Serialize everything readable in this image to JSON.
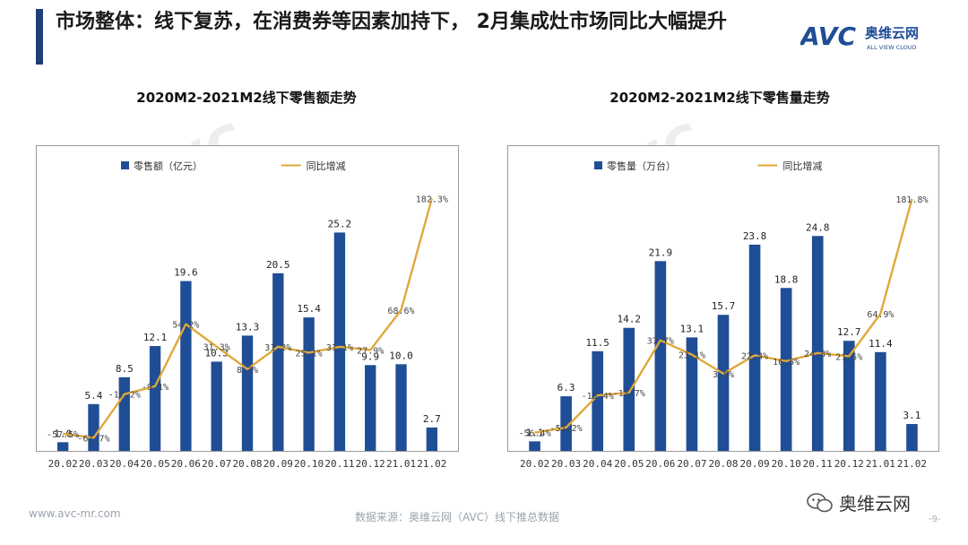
{
  "page": {
    "title": "市场整体：线下复苏，在消费券等因素加持下， 2月集成灶市场同比大幅提升",
    "logo_text": "AVC",
    "logo_cn": "奥维云网",
    "logo_en": "ALL VIEW CLOUD",
    "footer_url": "www.avc-mr.com",
    "footer_source": "数据来源：奥维云网（AVC）线下推总数据",
    "wechat_label": "奥维云网",
    "page_number": "-9-",
    "brand_color": "#1f3e7a",
    "bar_color": "#1f4e96",
    "line_color": "#e0a83a"
  },
  "chart_data": [
    {
      "type": "bar",
      "title": "2020M2-2021M2线下零售额走势",
      "categories": [
        "20.02",
        "20.03",
        "20.04",
        "20.05",
        "20.06",
        "20.07",
        "20.08",
        "20.09",
        "20.10",
        "20.11",
        "20.12",
        "21.01",
        "21.02"
      ],
      "series": [
        {
          "name": "零售额（亿元）",
          "type": "bar",
          "values": [
            1.0,
            5.4,
            8.5,
            12.1,
            19.6,
            10.3,
            13.3,
            20.5,
            15.4,
            25.2,
            9.9,
            10.0,
            2.7
          ],
          "labels": [
            "1.0",
            "5.4",
            "8.5",
            "12.1",
            "19.6",
            "10.3",
            "13.3",
            "20.5",
            "15.4",
            "25.2",
            "9.9",
            "10.0",
            "2.7"
          ]
        },
        {
          "name": "同比增减",
          "type": "line",
          "values": [
            -57.5,
            -61.7,
            -17.2,
            -9.1,
            54.2,
            31.3,
            8.3,
            31.2,
            25.1,
            31.1,
            27.9,
            68.6,
            182.3
          ],
          "labels": [
            "-57.5%",
            "-61.7%",
            "-17.2%",
            "-9.1%",
            "54.2%",
            "31.3%",
            "8.3%",
            "31.2%",
            "25.1%",
            "31.1%",
            "27.9%",
            "68.6%",
            "182.3%"
          ]
        }
      ],
      "ylim_bar": [
        0,
        30
      ],
      "ylim_line": [
        -75,
        190
      ],
      "legend_position": "top"
    },
    {
      "type": "bar",
      "title": "2020M2-2021M2线下零售量走势",
      "categories": [
        "20.02",
        "20.03",
        "20.04",
        "20.05",
        "20.06",
        "20.07",
        "20.08",
        "20.09",
        "20.10",
        "20.11",
        "20.12",
        "21.01",
        "21.02"
      ],
      "series": [
        {
          "name": "零售量（万台）",
          "type": "bar",
          "values": [
            1.1,
            6.3,
            11.5,
            14.2,
            21.9,
            13.1,
            15.7,
            23.8,
            18.8,
            24.8,
            12.7,
            11.4,
            3.1
          ],
          "labels": [
            "1.1",
            "6.3",
            "11.5",
            "14.2",
            "21.9",
            "13.1",
            "15.7",
            "23.8",
            "18.8",
            "24.8",
            "12.7",
            "11.4",
            "3.1"
          ]
        },
        {
          "name": "同比增减",
          "type": "line",
          "values": [
            -56.4,
            -51.2,
            -18.4,
            -15.7,
            37.7,
            23.1,
            3.8,
            22.4,
            16.5,
            24.8,
            21.5,
            64.9,
            181.8
          ],
          "labels": [
            "-56.4%",
            "-51.2%",
            "-18.4%",
            "-15.7%",
            "37.7%",
            "23.1%",
            "3.8%",
            "22.4%",
            "16.5%",
            "24.8%",
            "21.5%",
            "64.9%",
            "181.8%"
          ]
        }
      ],
      "ylim_bar": [
        0,
        30
      ],
      "ylim_line": [
        -75,
        190
      ],
      "legend_position": "top"
    }
  ]
}
